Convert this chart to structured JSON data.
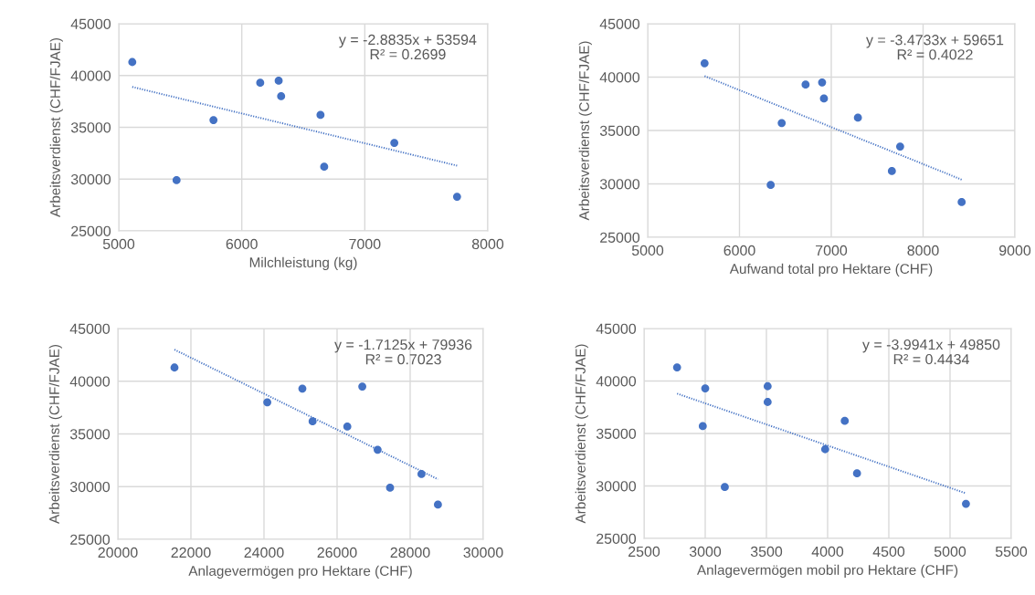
{
  "chart_data": [
    {
      "type": "scatter",
      "xlabel": "Milchleistung (kg)",
      "ylabel": "Arbeitsverdienst (CHF/FJAE)",
      "annotations": [
        "y = -2.8835x + 53594",
        "R² = 0.2699"
      ],
      "xlim": [
        5000,
        8000
      ],
      "xticks": [
        5000,
        6000,
        7000,
        8000
      ],
      "ylim": [
        25000,
        45000
      ],
      "yticks": [
        25000,
        30000,
        35000,
        40000,
        45000
      ],
      "grid": true,
      "series": [
        {
          "color": "#4472c4",
          "marker": "circle",
          "x": [
            5110,
            5470,
            5770,
            6150,
            6300,
            6320,
            6640,
            6670,
            7240,
            7750
          ],
          "values": [
            41300,
            29900,
            35700,
            39300,
            39500,
            38000,
            36200,
            31200,
            33500,
            28300
          ]
        },
        {
          "type": "line",
          "color": "#4472c4",
          "marker": "none",
          "line_style": "dotted",
          "x": [
            5110,
            7750
          ],
          "values": [
            38900,
            31300
          ]
        }
      ]
    },
    {
      "type": "scatter",
      "xlabel": "Aufwand total pro Hektare (CHF)",
      "ylabel": "Arbeitsverdienst (CHF/FJAE)",
      "annotations": [
        "y = -3.4733x + 59651",
        "R² = 0.4022"
      ],
      "xlim": [
        5000,
        9000
      ],
      "xticks": [
        5000,
        6000,
        7000,
        8000,
        9000
      ],
      "ylim": [
        25000,
        45000
      ],
      "yticks": [
        25000,
        30000,
        35000,
        40000,
        45000
      ],
      "grid": true,
      "series": [
        {
          "color": "#4472c4",
          "marker": "circle",
          "x": [
            5620,
            6340,
            6460,
            6720,
            6900,
            6920,
            7290,
            7660,
            7750,
            8420
          ],
          "values": [
            41300,
            29900,
            35700,
            39300,
            39500,
            38000,
            36200,
            31200,
            33500,
            28300
          ]
        },
        {
          "type": "line",
          "color": "#4472c4",
          "marker": "none",
          "line_style": "dotted",
          "x": [
            5620,
            8420
          ],
          "values": [
            40100,
            30400
          ]
        }
      ]
    },
    {
      "type": "scatter",
      "xlabel": "Anlagevermögen pro Hektare (CHF)",
      "ylabel": "Arbeitsverdienst (CHF/FJAE)",
      "annotations": [
        "y = -1.7125x + 79936",
        "R² = 0.7023"
      ],
      "xlim": [
        20000,
        30000
      ],
      "xticks": [
        20000,
        22000,
        24000,
        26000,
        28000,
        30000
      ],
      "ylim": [
        25000,
        45000
      ],
      "yticks": [
        25000,
        30000,
        35000,
        40000,
        45000
      ],
      "grid": true,
      "series": [
        {
          "color": "#4472c4",
          "marker": "circle",
          "x": [
            21550,
            27450,
            26280,
            25050,
            26690,
            24090,
            25330,
            28310,
            27110,
            28760
          ],
          "values": [
            41300,
            29900,
            35700,
            39300,
            39500,
            38000,
            36200,
            31200,
            33500,
            28300
          ]
        },
        {
          "type": "line",
          "color": "#4472c4",
          "marker": "none",
          "line_style": "dotted",
          "x": [
            21550,
            28760
          ],
          "values": [
            43000,
            30700
          ]
        }
      ]
    },
    {
      "type": "scatter",
      "xlabel": "Anlagevermögen mobil pro Hektare (CHF)",
      "ylabel": "Arbeitsverdienst (CHF/FJAE)",
      "annotations": [
        "y = -3.9941x + 49850",
        "R² = 0.4434"
      ],
      "xlim": [
        2500,
        5500
      ],
      "xticks": [
        2500,
        3000,
        3500,
        4000,
        4500,
        5000,
        5500
      ],
      "ylim": [
        25000,
        45000
      ],
      "yticks": [
        25000,
        30000,
        35000,
        40000,
        45000
      ],
      "grid": true,
      "series": [
        {
          "color": "#4472c4",
          "marker": "circle",
          "x": [
            2770,
            3160,
            2980,
            3000,
            3510,
            3510,
            4140,
            4240,
            3980,
            5130
          ],
          "values": [
            41300,
            29900,
            35700,
            39300,
            39500,
            38000,
            36200,
            31200,
            33500,
            28300
          ]
        },
        {
          "type": "line",
          "color": "#4472c4",
          "marker": "none",
          "line_style": "dotted",
          "x": [
            2770,
            5130
          ],
          "values": [
            38800,
            29300
          ]
        }
      ]
    }
  ]
}
